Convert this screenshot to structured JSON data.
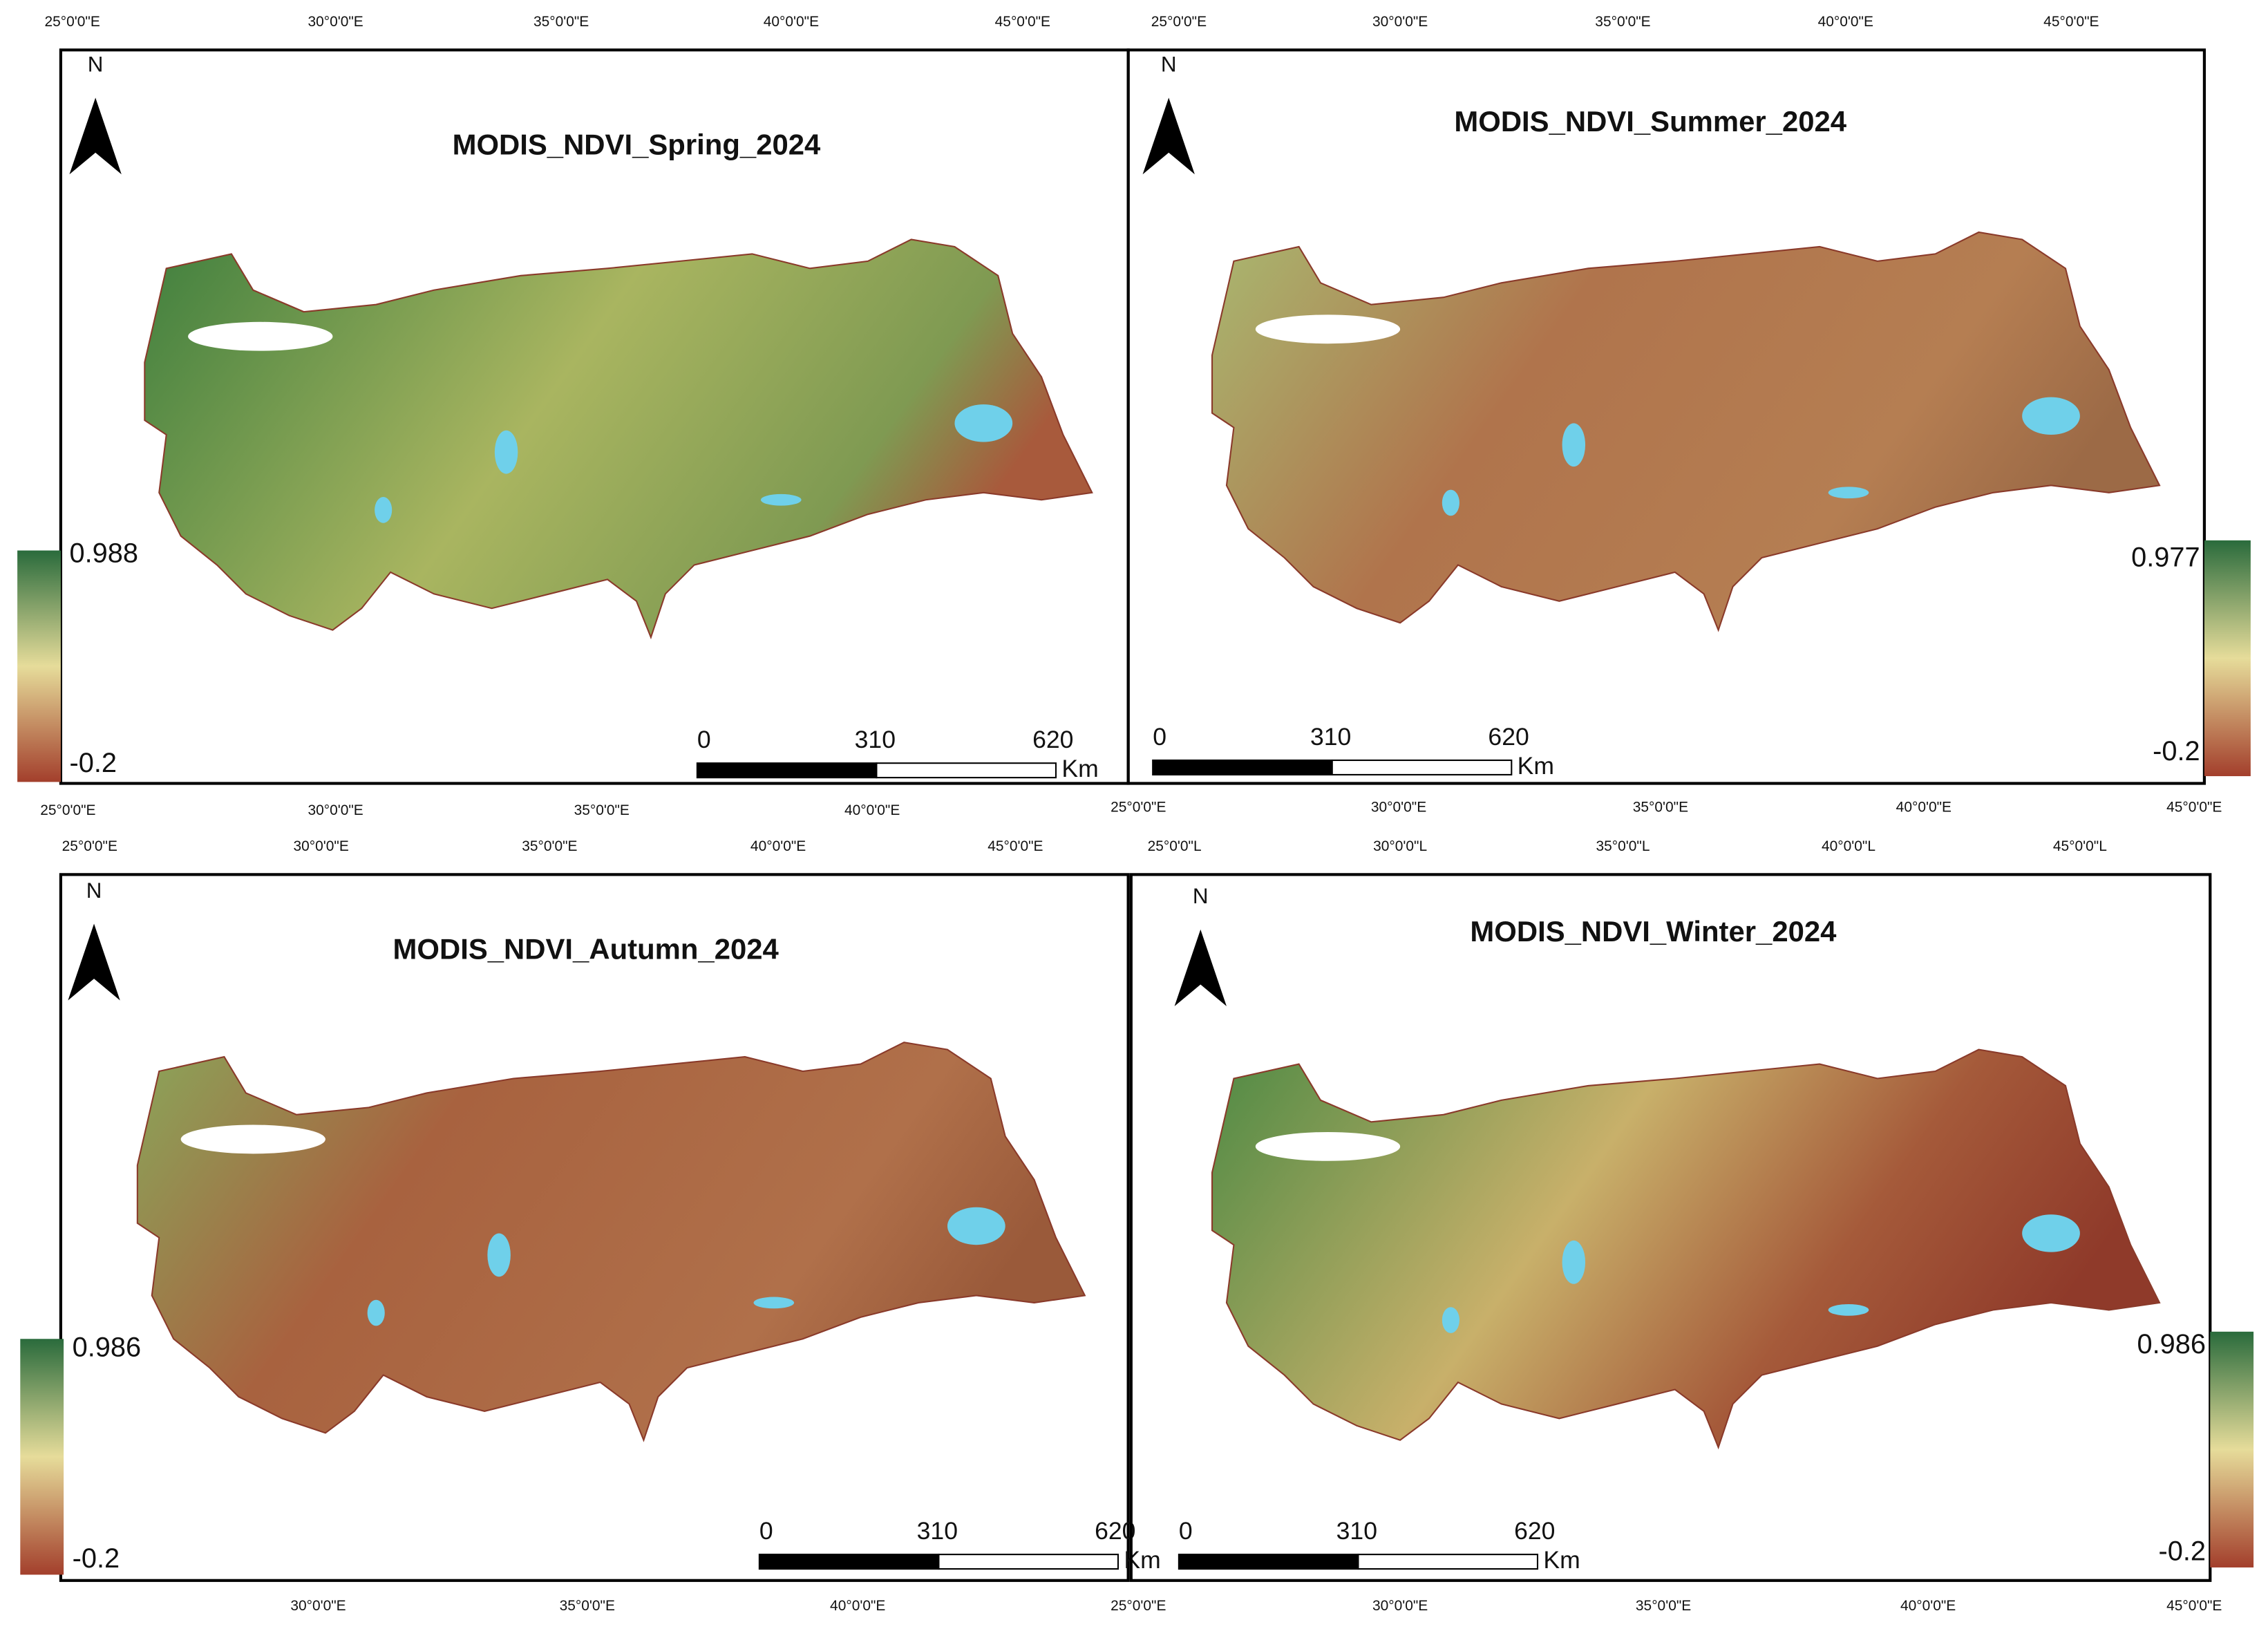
{
  "panels": [
    {
      "title": "MODIS_NDVI_Spring_2024",
      "north": "N",
      "legend": {
        "max": 0.988,
        "min": -0.2
      },
      "scale": {
        "labels": [
          0,
          310,
          620
        ],
        "unit": "Km"
      },
      "top_labels": [
        "25°0'0\"E",
        "30°0'0\"E",
        "35°0'0\"E",
        "40°0'0\"E",
        "45°0'0\"E"
      ],
      "bottom_labels": [
        "25°0'0\"E",
        "30°0'0\"E",
        "35°0'0\"E",
        "40°0'0\"E"
      ]
    },
    {
      "title": "MODIS_NDVI_Summer_2024",
      "north": "N",
      "legend": {
        "max": 0.977,
        "min": -0.2
      },
      "scale": {
        "labels": [
          0,
          310,
          620
        ],
        "unit": "Km"
      },
      "top_labels": [
        "25°0'0\"E",
        "30°0'0\"E",
        "35°0'0\"E",
        "40°0'0\"E",
        "45°0'0\"E"
      ],
      "bottom_labels": [
        "25°0'0\"E",
        "30°0'0\"E",
        "35°0'0\"E",
        "40°0'0\"E",
        "45°0'0\"E"
      ]
    },
    {
      "title": "MODIS_NDVI_Autumn_2024",
      "north": "N",
      "legend": {
        "max": 0.986,
        "min": -0.2
      },
      "scale": {
        "labels": [
          0,
          310,
          620
        ],
        "unit": "Km"
      },
      "top_labels": [
        "25°0'0\"E",
        "30°0'0\"E",
        "35°0'0\"E",
        "40°0'0\"E",
        "45°0'0\"E"
      ],
      "bottom_labels": [
        "30°0'0\"E",
        "35°0'0\"E",
        "40°0'0\"E"
      ]
    },
    {
      "title": "MODIS_NDVI_Winter_2024",
      "north": "N",
      "legend": {
        "max": 0.986,
        "min": -0.2
      },
      "scale": {
        "labels": [
          0,
          310,
          620
        ],
        "unit": "Km"
      },
      "top_labels": [
        "25°0'0\"L",
        "30°0'0\"L",
        "35°0'0\"L",
        "40°0'0\"L",
        "45°0'0\"L"
      ],
      "bottom_labels": [
        "25°0'0\"E",
        "30°0'0\"E",
        "35°0'0\"E",
        "40°0'0\"E",
        "45°0'0\"E"
      ]
    }
  ]
}
